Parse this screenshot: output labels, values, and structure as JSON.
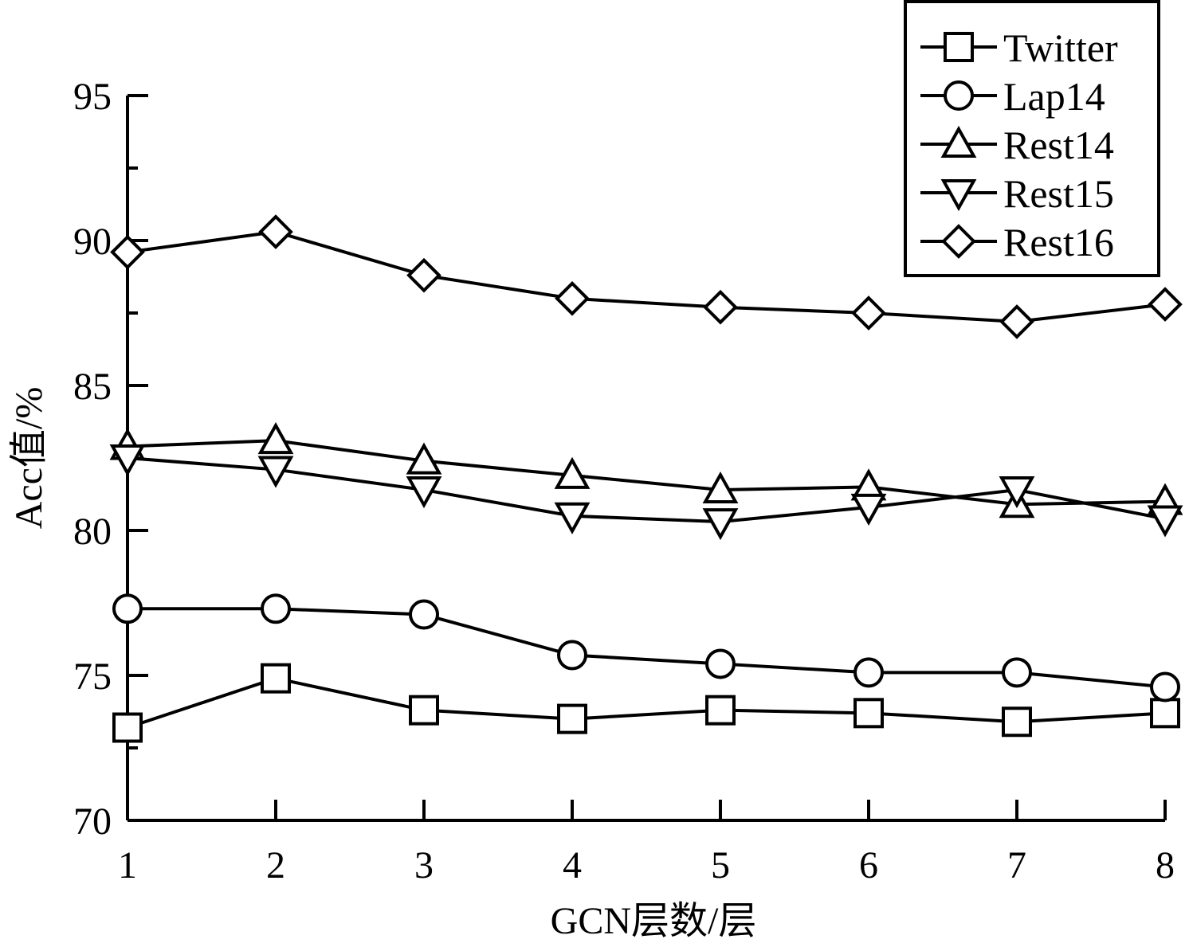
{
  "chart_data": {
    "type": "line",
    "title": "",
    "xlabel": "GCN层数/层",
    "ylabel": "Acc值/%",
    "x": [
      1,
      2,
      3,
      4,
      5,
      6,
      7,
      8
    ],
    "ylim": [
      70,
      95
    ],
    "yticks": [
      70,
      75,
      80,
      85,
      90,
      95
    ],
    "legend_position": "top-right",
    "grid": false,
    "series": [
      {
        "name": "Twitter",
        "marker": "square",
        "values": [
          73.2,
          74.9,
          73.8,
          73.5,
          73.8,
          73.7,
          73.4,
          73.7
        ]
      },
      {
        "name": "Lap14",
        "marker": "circle",
        "values": [
          77.3,
          77.3,
          77.1,
          75.7,
          75.4,
          75.1,
          75.1,
          74.6
        ]
      },
      {
        "name": "Rest14",
        "marker": "triangle-up",
        "values": [
          82.9,
          83.1,
          82.4,
          81.9,
          81.4,
          81.5,
          80.9,
          81.0
        ]
      },
      {
        "name": "Rest15",
        "marker": "triangle-down",
        "values": [
          82.5,
          82.1,
          81.4,
          80.5,
          80.3,
          80.8,
          81.4,
          80.4
        ]
      },
      {
        "name": "Rest16",
        "marker": "diamond",
        "values": [
          89.6,
          90.3,
          88.8,
          88.0,
          87.7,
          87.5,
          87.2,
          87.8
        ]
      }
    ]
  }
}
